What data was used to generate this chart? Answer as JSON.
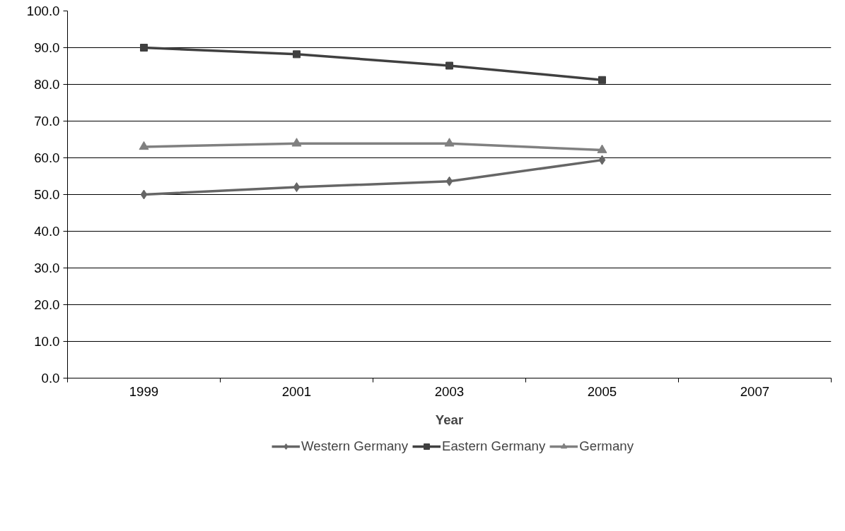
{
  "chart_data": {
    "type": "line",
    "xlabel": "Year",
    "categories": [
      "1999",
      "2001",
      "2003",
      "2005",
      "2007"
    ],
    "ylim": [
      0,
      100
    ],
    "yticks": [
      {
        "value": 0,
        "label": "0.0"
      },
      {
        "value": 10,
        "label": "10.0"
      },
      {
        "value": 20,
        "label": "20.0"
      },
      {
        "value": 30,
        "label": "30.0"
      },
      {
        "value": 40,
        "label": "40.0"
      },
      {
        "value": 50,
        "label": "50.0"
      },
      {
        "value": 60,
        "label": "60.0"
      },
      {
        "value": 70,
        "label": "70.0"
      },
      {
        "value": 80,
        "label": "80.0"
      },
      {
        "value": 90,
        "label": "90.0"
      },
      {
        "value": 100,
        "label": "100.0"
      }
    ],
    "grid": "y",
    "legend": "bottom",
    "line_style": "solid",
    "series": [
      {
        "name": "Western Germany",
        "color": "#666666",
        "marker": "diamond",
        "values": [
          50.0,
          52.0,
          53.6,
          59.4,
          null
        ]
      },
      {
        "name": "Eastern Germany",
        "color": "#404040",
        "marker": "square",
        "values": [
          90.0,
          88.2,
          85.1,
          81.2,
          null
        ]
      },
      {
        "name": "Germany",
        "color": "#808080",
        "marker": "triangle",
        "values": [
          63.0,
          63.9,
          63.9,
          62.1,
          null
        ]
      }
    ]
  }
}
